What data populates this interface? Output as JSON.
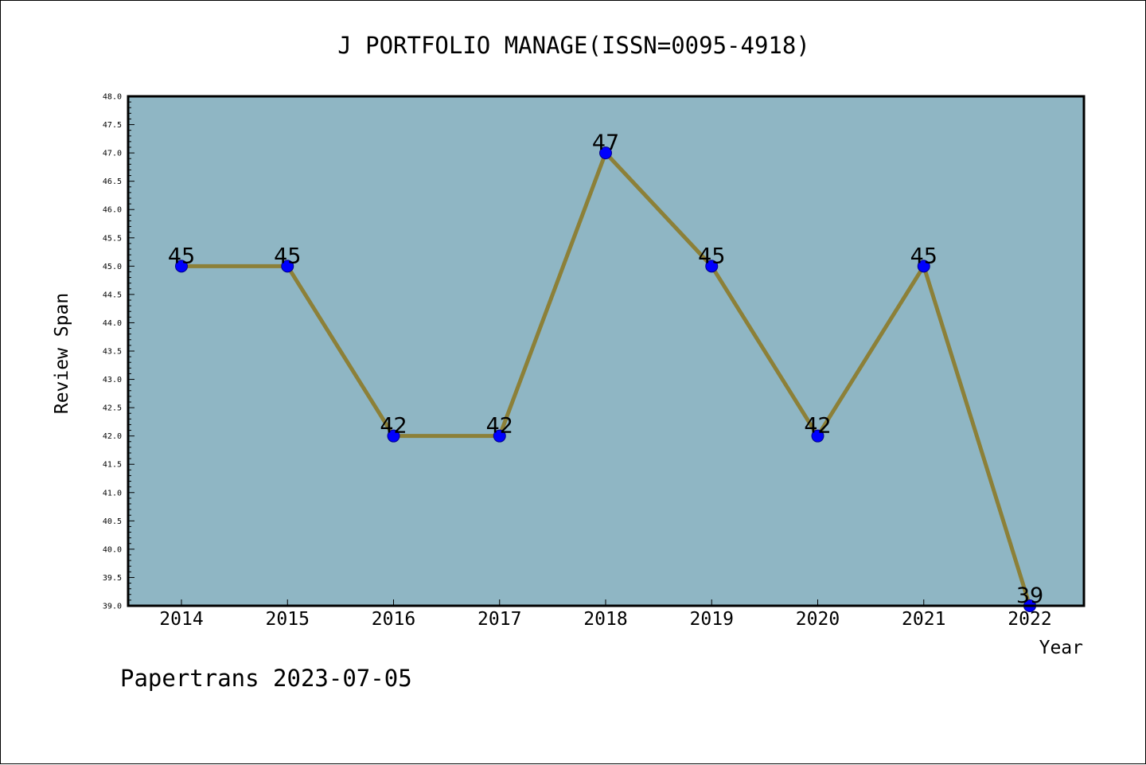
{
  "footer": {
    "text": "Papertrans 2023-07-05"
  },
  "colors": {
    "plot_background": "#8fb6c4",
    "line": "#8c8038",
    "marker": "#0000ff",
    "marker_edge": "#00008b",
    "axis": "#000000",
    "figure_background": "#ffffff"
  },
  "chart_data": {
    "type": "line",
    "title": "J PORTFOLIO MANAGE(ISSN=0095-4918)",
    "xlabel": "Year",
    "ylabel": "Review Span",
    "categories": [
      "2014",
      "2015",
      "2016",
      "2017",
      "2018",
      "2019",
      "2020",
      "2021",
      "2022"
    ],
    "series": [
      {
        "values": [
          45,
          45,
          42,
          42,
          47,
          45,
          42,
          45,
          39
        ],
        "data_labels": [
          "45",
          "45",
          "42",
          "42",
          "47",
          "45",
          "42",
          "45",
          "39"
        ]
      }
    ],
    "ylim": [
      39.0,
      48.0
    ],
    "yticks": [
      "39.0",
      "39.5",
      "40.0",
      "40.5",
      "41.0",
      "41.5",
      "42.0",
      "42.5",
      "43.0",
      "43.5",
      "44.0",
      "44.5",
      "45.0",
      "45.5",
      "46.0",
      "46.5",
      "47.0",
      "47.5",
      "48.0"
    ],
    "grid": false,
    "legend": "none"
  }
}
